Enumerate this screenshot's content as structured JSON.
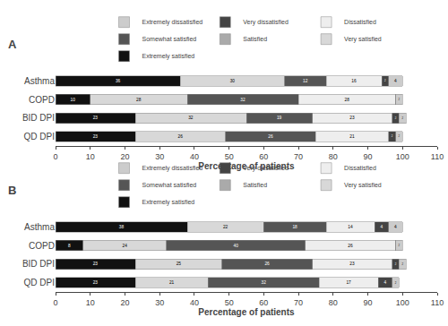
{
  "chart_data": [
    {
      "type": "bar",
      "title": "A",
      "orientation": "horizontal",
      "stacked": true,
      "data_labels": true,
      "grid": false,
      "legend": "top",
      "categories": [
        "Asthma",
        "COPD",
        "BID DPI",
        "QD DPI"
      ],
      "series": [
        {
          "name": "Extremely satisfied",
          "color": "#111111",
          "values": [
            36,
            10,
            23,
            23
          ]
        },
        {
          "name": "Very satisfied",
          "color": "#d8d8d8",
          "values": [
            30,
            28,
            32,
            26
          ]
        },
        {
          "name": "Satisfied",
          "color": "#aaaaaa",
          "values": [
            0,
            0,
            0,
            0
          ]
        },
        {
          "name": "Somewhat satisfied",
          "color": "#555555",
          "values": [
            12,
            32,
            19,
            26
          ]
        },
        {
          "name": "Dissatisfied",
          "color": "#eeeeee",
          "values": [
            16,
            28,
            23,
            21
          ]
        },
        {
          "name": "Very dissatisfied",
          "color": "#444444",
          "values": [
            2,
            0,
            2,
            2
          ]
        },
        {
          "name": "Extremely dissatisfied",
          "color": "#cccccc",
          "values": [
            4,
            2,
            2,
            2
          ]
        }
      ],
      "xlabel": "Percentage of patients",
      "xlim": [
        0,
        110
      ],
      "xticks": [
        0,
        10,
        20,
        30,
        40,
        50,
        60,
        70,
        80,
        90,
        100,
        110
      ]
    },
    {
      "type": "bar",
      "title": "B",
      "orientation": "horizontal",
      "stacked": true,
      "data_labels": true,
      "grid": false,
      "legend": "top",
      "categories": [
        "Asthma",
        "COPD",
        "BID DPI",
        "QD DPI"
      ],
      "series": [
        {
          "name": "Extremely satisfied",
          "color": "#111111",
          "values": [
            38,
            8,
            23,
            23
          ]
        },
        {
          "name": "Very satisfied",
          "color": "#d8d8d8",
          "values": [
            22,
            24,
            25,
            21
          ]
        },
        {
          "name": "Satisfied",
          "color": "#aaaaaa",
          "values": [
            0,
            0,
            0,
            0
          ]
        },
        {
          "name": "Somewhat satisfied",
          "color": "#555555",
          "values": [
            18,
            40,
            26,
            32
          ]
        },
        {
          "name": "Dissatisfied",
          "color": "#eeeeee",
          "values": [
            14,
            26,
            23,
            17
          ]
        },
        {
          "name": "Very dissatisfied",
          "color": "#444444",
          "values": [
            4,
            0,
            2,
            4
          ]
        },
        {
          "name": "Extremely dissatisfied",
          "color": "#cccccc",
          "values": [
            4,
            2,
            2,
            2
          ]
        }
      ],
      "xlabel": "Percentage of patients",
      "xlim": [
        0,
        110
      ],
      "xticks": [
        0,
        10,
        20,
        30,
        40,
        50,
        60,
        70,
        80,
        90,
        100,
        110
      ]
    }
  ]
}
